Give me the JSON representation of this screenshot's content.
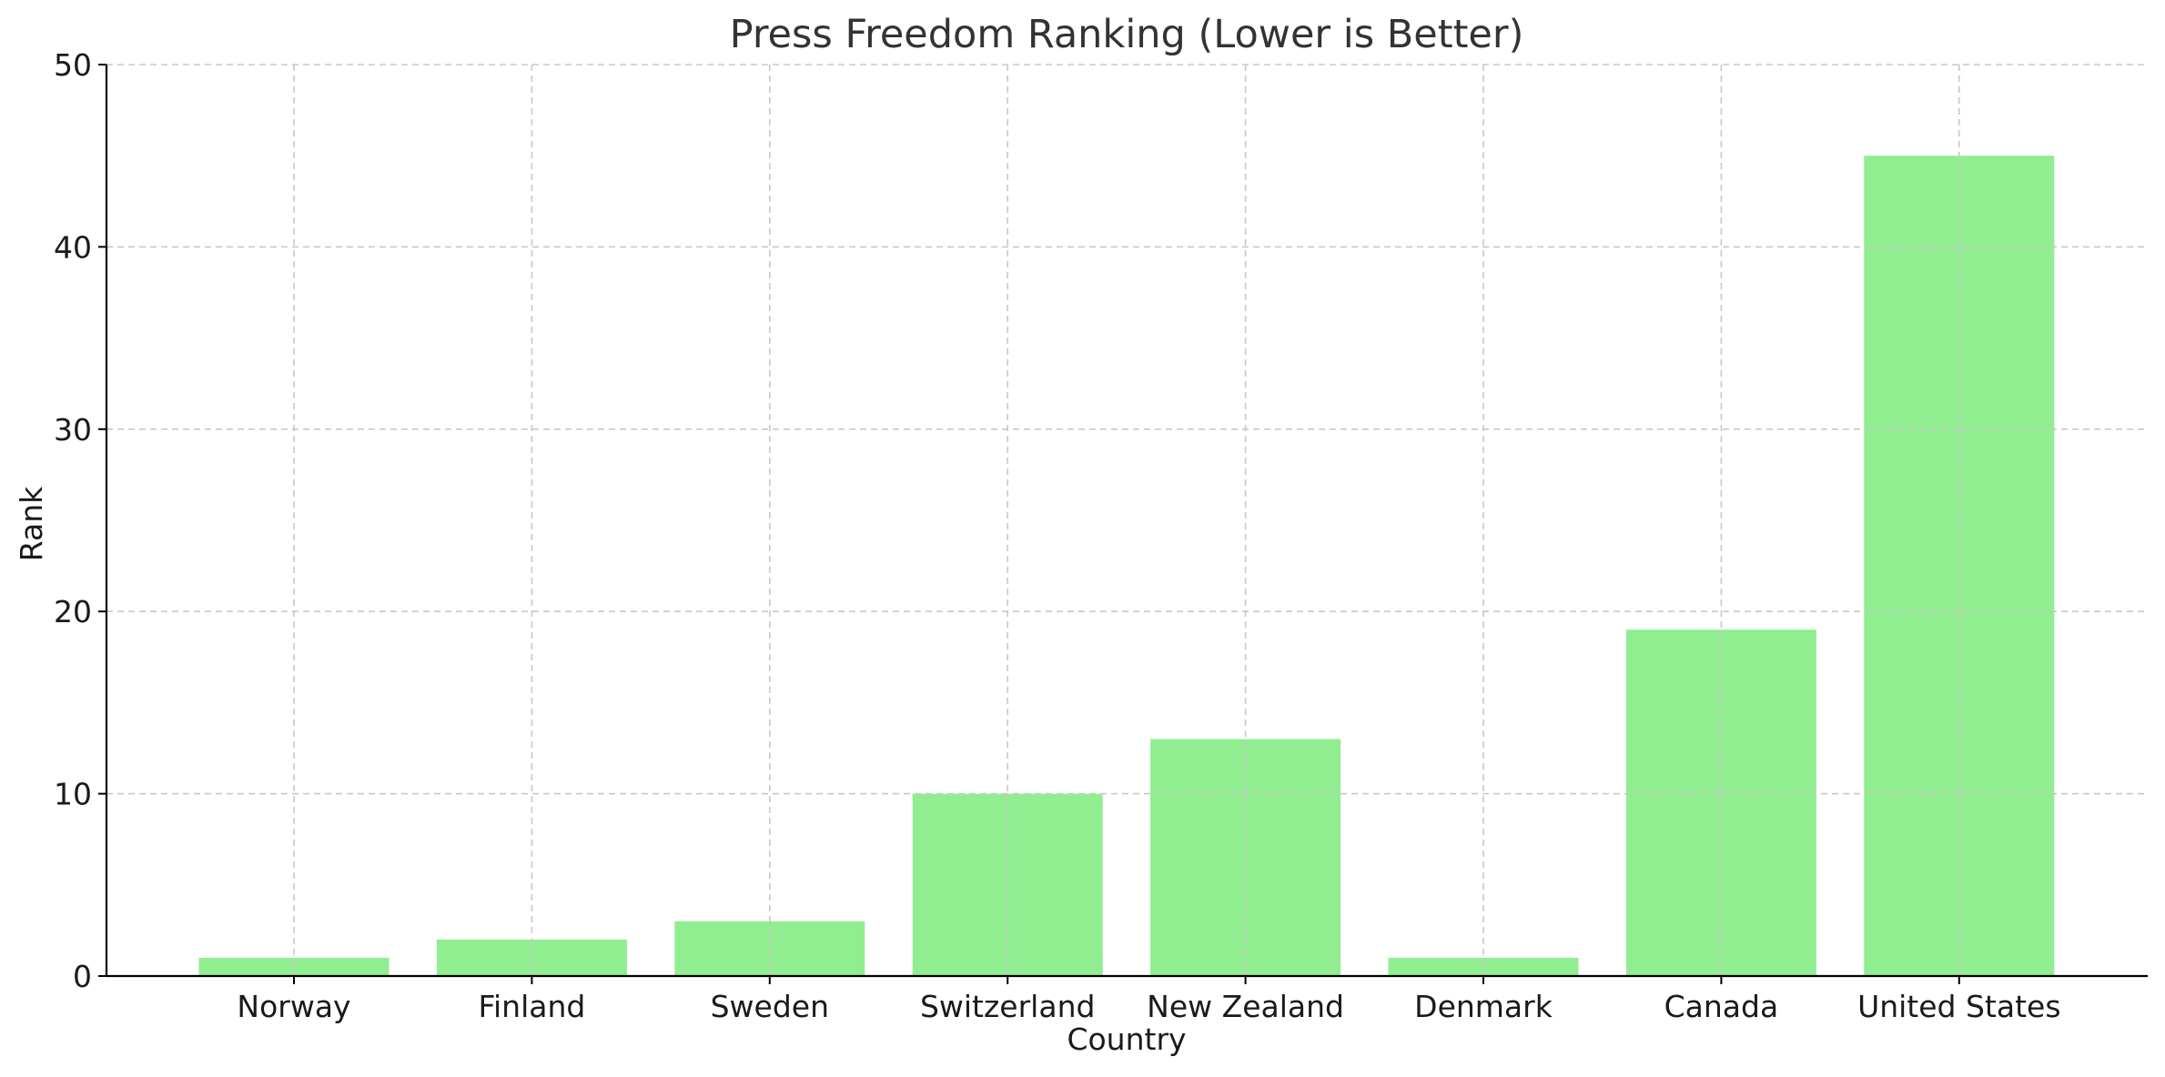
{
  "chart_data": {
    "type": "bar",
    "title": "Press Freedom Ranking (Lower is Better)",
    "xlabel": "Country",
    "ylabel": "Rank",
    "categories": [
      "Norway",
      "Finland",
      "Sweden",
      "Switzerland",
      "New Zealand",
      "Denmark",
      "Canada",
      "United States"
    ],
    "values": [
      1,
      2,
      3,
      10,
      13,
      1,
      19,
      45
    ],
    "ylim": [
      0,
      50
    ],
    "yticks": [
      0,
      10,
      20,
      30,
      40,
      50
    ],
    "grid": true,
    "legend": "none",
    "bar_color": "#90ee90"
  }
}
